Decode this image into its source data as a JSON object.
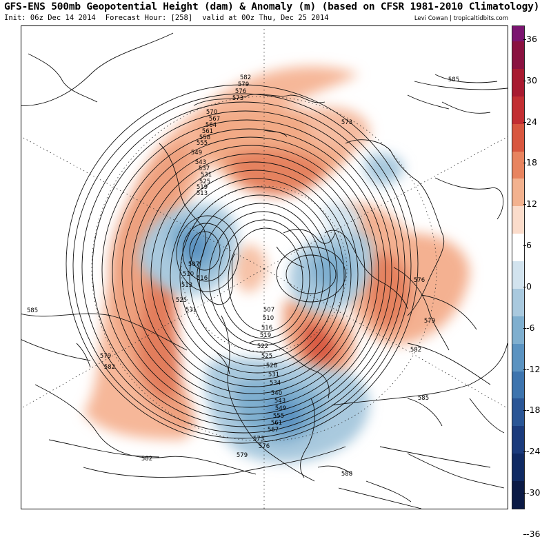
{
  "header": {
    "title": "GFS-ENS 500mb Geopotential Height (dam) & Anomaly (m) (based on CFSR 1981-2010 Climatology)",
    "init": "Init: 06z Dec 14 2014",
    "forecast_hour": "Forecast Hour: [258]",
    "valid": "valid at 00z Thu, Dec 25 2014",
    "credit": "Levi Cowan | tropicaltidbits.com"
  },
  "colorbar": {
    "labels": [
      "36",
      "30",
      "24",
      "18",
      "12",
      "6",
      "0",
      "-6",
      "-12",
      "-18",
      "-24",
      "-30",
      "-36"
    ],
    "colors": [
      "#7b1570",
      "#8a1240",
      "#a81a30",
      "#c22e32",
      "#d8573f",
      "#e8845f",
      "#f3b28f",
      "#fbdccb",
      "#ffffff",
      "#d2e3ee",
      "#a9c9de",
      "#7fafcf",
      "#5b93c1",
      "#3d74ae",
      "#2a5696",
      "#1b3b7c",
      "#102a63",
      "#0b1a45"
    ]
  },
  "map": {
    "contour_labels": {
      "c582a": "582",
      "c579a": "579",
      "c576a": "576",
      "c573a": "573",
      "c570": "570",
      "c567": "567",
      "c564": "564",
      "c561": "561",
      "c558": "558",
      "c555": "555",
      "c549": "549",
      "c543": "543",
      "c537": "537",
      "c531": "531",
      "c525": "525",
      "c519": "519",
      "c513": "513",
      "c507": "507",
      "c510": "510",
      "c513b": "513",
      "c516": "516",
      "c525b": "525",
      "c531b": "531",
      "c585w": "585",
      "c579w": "579",
      "c582w": "582",
      "c582sw": "582",
      "c585ne": "585",
      "c573ne": "573",
      "c576e": "576",
      "c579e": "579",
      "c582e": "582",
      "c585e": "585",
      "c507n": "507",
      "c510n": "510",
      "c516n": "516",
      "c519n": "519",
      "c522n": "522",
      "c525n": "525",
      "c528n": "528",
      "c531n": "531",
      "c534n": "534",
      "c540n": "540",
      "c543n": "543",
      "c549n": "549",
      "c555n": "555",
      "c561n": "561",
      "c567n": "567",
      "c573n": "573",
      "c576n": "576",
      "c579s": "579",
      "c588s": "588"
    }
  }
}
